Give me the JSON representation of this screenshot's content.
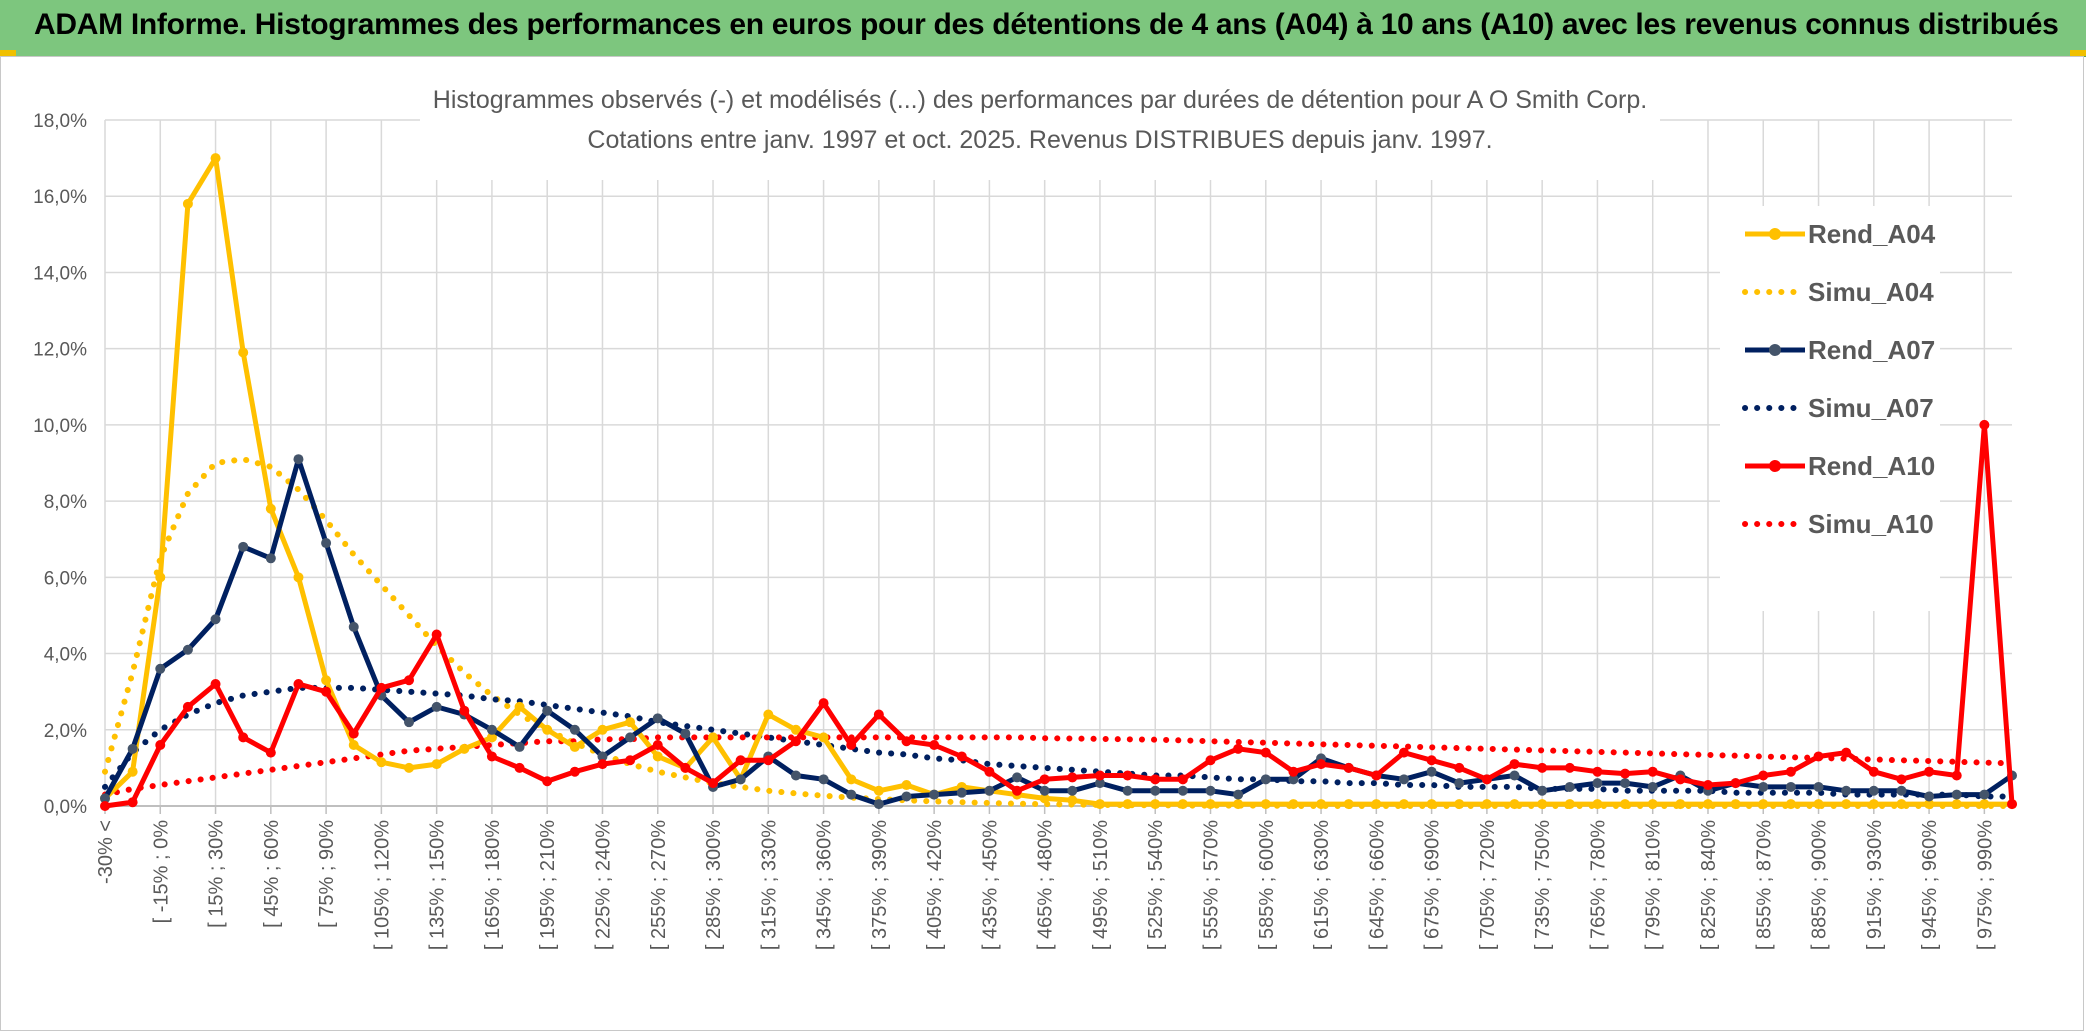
{
  "header": {
    "banner_title": "ADAM Informe. Histogrammes des performances en euros pour des détentions de 4 ans (A04) à 10 ans (A10) avec les revenus connus distribués"
  },
  "colors": {
    "banner_bg": "#7dc67e",
    "A04": "#ffc000",
    "A07": "#002060",
    "A10": "#ff0000",
    "grid": "#d9d9d9"
  },
  "chart_data": {
    "type": "line",
    "title": "Histogrammes observés (-) et modélisés (...) des performances par durées de détention pour A O Smith Corp.",
    "subtitle": "Cotations entre janv. 1997 et oct. 2025. Revenus DISTRIBUES depuis janv. 1997.",
    "xlabel": "",
    "ylabel": "",
    "ylim": [
      0,
      18
    ],
    "yticks": [
      "0,0%",
      "2,0%",
      "4,0%",
      "6,0%",
      "8,0%",
      "10,0%",
      "12,0%",
      "14,0%",
      "16,0%",
      "18,0%"
    ],
    "grid": true,
    "legend_position": "right",
    "x_labels": [
      "-30% <",
      "[ -15% ; 0%",
      "[ 15% ; 30%",
      "[ 45% ; 60%",
      "[ 75% ; 90%",
      "[ 105% ; 120%",
      "[ 135% ; 150%",
      "[ 165% ; 180%",
      "[ 195% ; 210%",
      "[ 225% ; 240%",
      "[ 255% ; 270%",
      "[ 285% ; 300%",
      "[ 315% ; 330%",
      "[ 345% ; 360%",
      "[ 375% ; 390%",
      "[ 405% ; 420%",
      "[ 435% ; 450%",
      "[ 465% ; 480%",
      "[ 495% ; 510%",
      "[ 525% ; 540%",
      "[ 555% ; 570%",
      "[ 585% ; 600%",
      "[ 615% ; 630%",
      "[ 645% ; 660%",
      "[ 675% ; 690%",
      "[ 705% ; 720%",
      "[ 735% ; 750%",
      "[ 765% ; 780%",
      "[ 795% ; 810%",
      "[ 825% ; 840%",
      "[ 855% ; 870%",
      "[ 885% ; 900%",
      "[ 915% ; 930%",
      "[ 945% ; 960%",
      "[ 975% ; 990%"
    ],
    "n_points": 70,
    "series": [
      {
        "name": "Rend_A04",
        "style": "solid",
        "color": "#ffc000",
        "values": [
          0.2,
          0.9,
          6.0,
          15.8,
          17.0,
          11.9,
          7.8,
          6.0,
          3.3,
          1.6,
          1.15,
          1.0,
          1.1,
          1.5,
          1.8,
          2.6,
          2.0,
          1.55,
          2.0,
          2.2,
          1.3,
          1.0,
          1.8,
          0.7,
          2.4,
          2.0,
          1.8,
          0.7,
          0.4,
          0.55,
          0.3,
          0.5,
          0.4,
          0.3,
          0.2,
          0.15,
          0.05,
          0.05,
          0.05,
          0.05,
          0.05,
          0.05,
          0.05,
          0.05,
          0.05,
          0.05,
          0.05,
          0.05,
          0.05,
          0.05,
          0.05,
          0.05,
          0.05,
          0.05,
          0.05,
          0.05,
          0.05,
          0.05,
          0.05,
          0.05,
          0.05,
          0.05,
          0.05,
          0.05,
          0.05,
          0.05,
          0.05,
          0.05,
          0.05,
          0.05
        ]
      },
      {
        "name": "Simu_A04",
        "style": "dotted",
        "color": "#ffc000",
        "values": [
          0.9,
          3.5,
          6.5,
          8.2,
          9.0,
          9.1,
          8.9,
          8.3,
          7.5,
          6.6,
          5.8,
          5.0,
          4.2,
          3.5,
          2.9,
          2.4,
          2.0,
          1.65,
          1.35,
          1.1,
          0.9,
          0.75,
          0.6,
          0.5,
          0.4,
          0.33,
          0.27,
          0.22,
          0.18,
          0.15,
          0.12,
          0.1,
          0.08,
          0.06,
          0.05,
          0.04,
          0.03,
          0.02,
          0.02,
          0.01,
          0.01,
          0.01,
          0.01,
          0.0,
          0.0,
          0.0,
          0.0,
          0.0,
          0.0,
          0.0,
          0.0,
          0.0,
          0.0,
          0.0,
          0.0,
          0.0,
          0.0,
          0.0,
          0.0,
          0.0,
          0.0,
          0.0,
          0.0,
          0.0,
          0.0,
          0.0,
          0.0,
          0.0,
          0.0,
          0.0
        ]
      },
      {
        "name": "Rend_A07",
        "style": "solid",
        "color": "#002060",
        "values": [
          0.2,
          1.5,
          3.6,
          4.1,
          4.9,
          6.8,
          6.5,
          9.1,
          6.9,
          4.7,
          2.9,
          2.2,
          2.6,
          2.4,
          2.0,
          1.55,
          2.5,
          2.0,
          1.3,
          1.8,
          2.3,
          1.9,
          0.5,
          0.7,
          1.3,
          0.8,
          0.7,
          0.3,
          0.05,
          0.25,
          0.3,
          0.35,
          0.4,
          0.75,
          0.4,
          0.4,
          0.6,
          0.4,
          0.4,
          0.4,
          0.4,
          0.3,
          0.7,
          0.7,
          1.25,
          1.0,
          0.8,
          0.7,
          0.9,
          0.6,
          0.7,
          0.8,
          0.4,
          0.5,
          0.6,
          0.6,
          0.5,
          0.8,
          0.4,
          0.6,
          0.5,
          0.5,
          0.5,
          0.4,
          0.4,
          0.4,
          0.25,
          0.3,
          0.3,
          0.8
        ]
      },
      {
        "name": "Simu_A07",
        "style": "dotted",
        "color": "#002060",
        "values": [
          0.5,
          1.4,
          2.0,
          2.4,
          2.7,
          2.9,
          3.0,
          3.1,
          3.1,
          3.1,
          3.05,
          3.0,
          2.95,
          2.9,
          2.8,
          2.75,
          2.65,
          2.55,
          2.45,
          2.35,
          2.2,
          2.1,
          2.0,
          1.9,
          1.8,
          1.7,
          1.6,
          1.5,
          1.4,
          1.35,
          1.25,
          1.2,
          1.1,
          1.05,
          1.0,
          0.95,
          0.9,
          0.85,
          0.8,
          0.8,
          0.75,
          0.7,
          0.7,
          0.65,
          0.65,
          0.6,
          0.6,
          0.55,
          0.55,
          0.5,
          0.5,
          0.5,
          0.45,
          0.45,
          0.45,
          0.4,
          0.4,
          0.4,
          0.4,
          0.35,
          0.35,
          0.35,
          0.35,
          0.3,
          0.3,
          0.3,
          0.3,
          0.3,
          0.25,
          0.25
        ]
      },
      {
        "name": "Rend_A10",
        "style": "solid",
        "color": "#ff0000",
        "values": [
          0.0,
          0.1,
          1.6,
          2.6,
          3.2,
          1.8,
          1.4,
          3.2,
          3.0,
          1.9,
          3.1,
          3.3,
          4.5,
          2.5,
          1.3,
          1.0,
          0.65,
          0.9,
          1.1,
          1.2,
          1.6,
          1.0,
          0.6,
          1.2,
          1.2,
          1.7,
          2.7,
          1.6,
          2.4,
          1.7,
          1.6,
          1.3,
          0.9,
          0.4,
          0.7,
          0.75,
          0.8,
          0.8,
          0.7,
          0.7,
          1.2,
          1.5,
          1.4,
          0.9,
          1.1,
          1.0,
          0.8,
          1.4,
          1.2,
          1.0,
          0.7,
          1.1,
          1.0,
          1.0,
          0.9,
          0.85,
          0.9,
          0.7,
          0.55,
          0.6,
          0.8,
          0.9,
          1.3,
          1.4,
          0.9,
          0.7,
          0.9,
          0.8,
          10.0,
          0.05
        ]
      },
      {
        "name": "Simu_A10",
        "style": "dotted",
        "color": "#ff0000",
        "values": [
          0.3,
          0.45,
          0.55,
          0.65,
          0.75,
          0.85,
          0.95,
          1.05,
          1.15,
          1.25,
          1.35,
          1.45,
          1.5,
          1.55,
          1.6,
          1.65,
          1.7,
          1.7,
          1.75,
          1.75,
          1.8,
          1.8,
          1.8,
          1.8,
          1.8,
          1.8,
          1.8,
          1.8,
          1.8,
          1.8,
          1.8,
          1.8,
          1.8,
          1.8,
          1.78,
          1.77,
          1.76,
          1.75,
          1.74,
          1.72,
          1.7,
          1.68,
          1.66,
          1.64,
          1.62,
          1.6,
          1.58,
          1.56,
          1.54,
          1.52,
          1.5,
          1.48,
          1.46,
          1.44,
          1.42,
          1.4,
          1.38,
          1.36,
          1.34,
          1.32,
          1.3,
          1.28,
          1.26,
          1.24,
          1.22,
          1.2,
          1.18,
          1.16,
          1.14,
          1.12
        ]
      }
    ]
  }
}
